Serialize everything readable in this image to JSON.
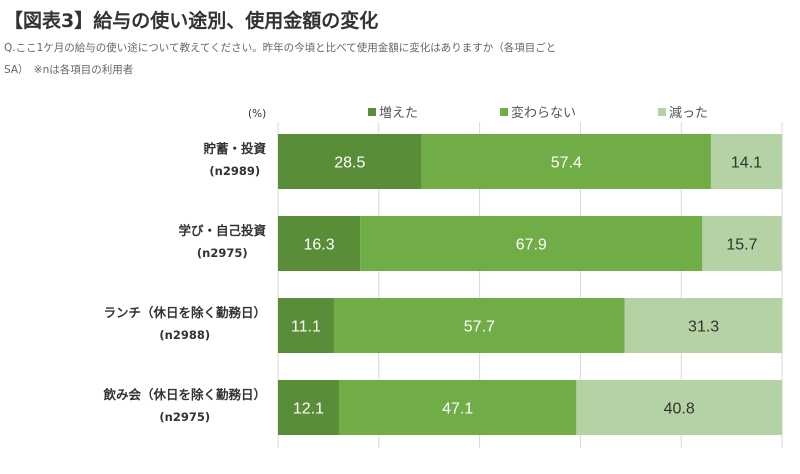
{
  "title": "【図表3】給与の使い途別、使用金額の変化",
  "subtitle_line1": "Q.ここ1ケ月の給与の使い途について教えてください。昨年の今頃と比べて使用金額に変化はありますか（各項目ごと",
  "subtitle_line2": "SA）　※nは各項目の利用者",
  "chart_data": {
    "type": "bar",
    "orientation": "horizontal-stacked-100",
    "unit_label": "(%)",
    "xlim": [
      0,
      100
    ],
    "grid": true,
    "legend_position": "top",
    "categories": [
      {
        "label": "貯蓄・投資",
        "n": "(n2989)"
      },
      {
        "label": "学び・自己投資",
        "n": "(n2975)"
      },
      {
        "label": "ランチ（休日を除く勤務日）",
        "n": "(n2988)"
      },
      {
        "label": "飲み会（休日を除く勤務日）",
        "n": "(n2975)"
      }
    ],
    "series": [
      {
        "name": "増えた",
        "color": "#5a8d38",
        "values": [
          28.5,
          16.3,
          11.1,
          12.1
        ]
      },
      {
        "name": "変わらない",
        "color": "#70ad47",
        "values": [
          57.4,
          67.9,
          57.7,
          47.1
        ]
      },
      {
        "name": "減った",
        "color": "#b4d2a4",
        "values": [
          14.1,
          15.7,
          31.3,
          40.8
        ]
      }
    ]
  }
}
